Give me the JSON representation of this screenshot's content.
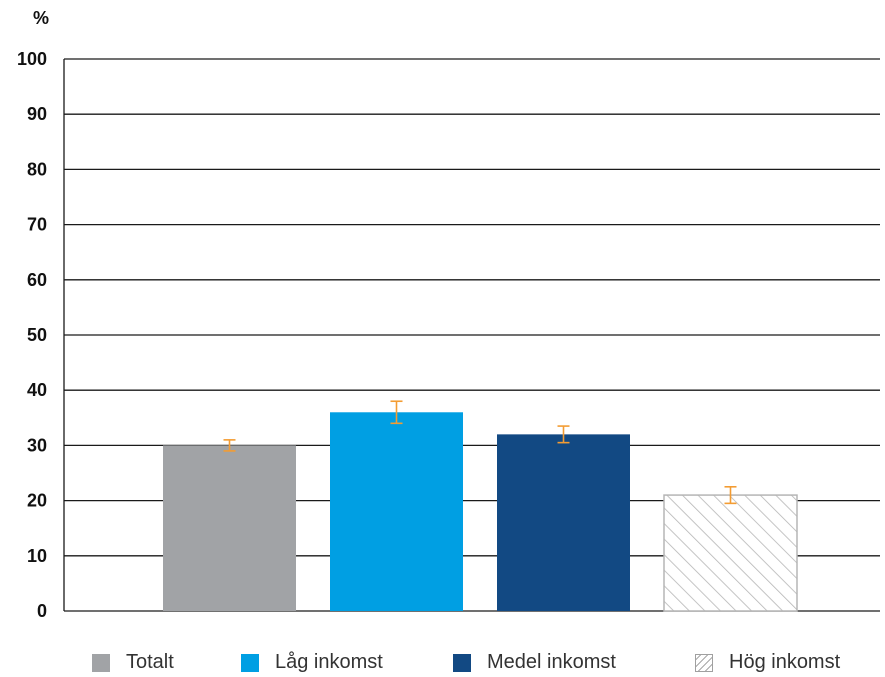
{
  "chart_data": {
    "type": "bar",
    "unit_label": "%",
    "categories": [
      "Totalt",
      "Låg inkomst",
      "Medel inkomst",
      "Hög inkomst"
    ],
    "values": [
      30,
      36,
      32,
      21
    ],
    "error_bars": [
      [
        29,
        31
      ],
      [
        34,
        38
      ],
      [
        30.5,
        33.5
      ],
      [
        19.5,
        22.5
      ]
    ],
    "ylim": [
      0,
      100
    ],
    "yticks": [
      "0",
      "10",
      "20",
      "30",
      "40",
      "50",
      "60",
      "70",
      "80",
      "90",
      "100"
    ],
    "grid": true,
    "legend_position": "bottom",
    "colors": {
      "Totalt": "#a1a3a6",
      "Låg inkomst": "#009fe3",
      "Medel inkomst": "#124983",
      "Hög inkomst": "hatched-gray",
      "error_bar": "#f39c33"
    }
  }
}
